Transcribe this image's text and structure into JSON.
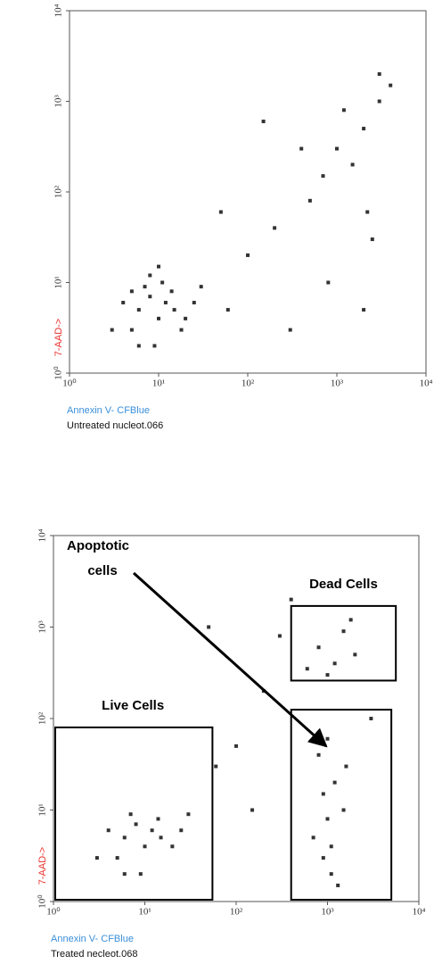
{
  "chart_data": [
    {
      "type": "scatter",
      "log": true,
      "color": "#000000",
      "x_label": "Annexin V- CFBlue",
      "y_label": "7-AAD->",
      "caption": "Untreated nucleot.066",
      "xlim": [
        1,
        10000
      ],
      "ylim": [
        1,
        10000
      ],
      "xticks": [
        {
          "value": 1,
          "label": "10⁰"
        },
        {
          "value": 10,
          "label": "10¹"
        },
        {
          "value": 100,
          "label": "10²"
        },
        {
          "value": 1000,
          "label": "10³"
        },
        {
          "value": 10000,
          "label": "10⁴"
        }
      ],
      "yticks": [
        {
          "value": 1,
          "label": "10⁰"
        },
        {
          "value": 10,
          "label": "10¹"
        },
        {
          "value": 100,
          "label": "10²"
        },
        {
          "value": 1000,
          "label": "10³"
        },
        {
          "value": 10000,
          "label": "10⁴"
        }
      ],
      "x": [
        6,
        8,
        10,
        12,
        5,
        7,
        9,
        15,
        4,
        11,
        20,
        3,
        8,
        14,
        25,
        6,
        10,
        18,
        30,
        5,
        60,
        100,
        200,
        500,
        1000,
        2000,
        3000,
        1500,
        2500,
        800,
        400,
        3000,
        1200,
        2000,
        50,
        4000,
        700,
        2200,
        300,
        150
      ],
      "values": [
        5,
        7,
        4,
        6,
        3,
        9,
        2,
        5,
        6,
        10,
        4,
        3,
        12,
        8,
        6,
        2,
        15,
        3,
        9,
        8,
        5,
        20,
        40,
        80,
        300,
        500,
        1000,
        200,
        30,
        10,
        300,
        2000,
        800,
        5,
        60,
        1500,
        150,
        60,
        3,
        600
      ]
    },
    {
      "type": "scatter",
      "log": true,
      "color": "#000000",
      "x_label": "Annexin V- CFBlue",
      "y_label": "7-AAD->",
      "caption": "Treated necleot.068",
      "xlim": [
        1,
        10000
      ],
      "ylim": [
        1,
        10000
      ],
      "xticks": [
        {
          "value": 1,
          "label": "10⁰"
        },
        {
          "value": 10,
          "label": "10¹"
        },
        {
          "value": 100,
          "label": "10²"
        },
        {
          "value": 1000,
          "label": "10³"
        },
        {
          "value": 10000,
          "label": "10⁴"
        }
      ],
      "yticks": [
        {
          "value": 1,
          "label": "10⁰"
        },
        {
          "value": 10,
          "label": "10¹"
        },
        {
          "value": 100,
          "label": "10²"
        },
        {
          "value": 1000,
          "label": "10³"
        },
        {
          "value": 10000,
          "label": "10⁴"
        }
      ],
      "x": [
        6,
        8,
        10,
        12,
        5,
        7,
        9,
        15,
        4,
        20,
        3,
        14,
        25,
        30,
        6,
        900,
        1000,
        1200,
        800,
        1100,
        1500,
        700,
        1000,
        1300,
        1600,
        900,
        1100,
        1200,
        800,
        1500,
        2000,
        600,
        1800,
        1000,
        100,
        200,
        300,
        50,
        3000,
        150,
        400,
        60
      ],
      "values": [
        5,
        7,
        4,
        6,
        3,
        9,
        2,
        5,
        6,
        4,
        3,
        8,
        6,
        9,
        2,
        3,
        8,
        20,
        40,
        2,
        10,
        5,
        60,
        1.5,
        30,
        15,
        4,
        400,
        600,
        900,
        500,
        350,
        1200,
        300,
        50,
        200,
        800,
        1000,
        100,
        10,
        2000,
        30
      ],
      "gates": [
        {
          "label": "Live Cells",
          "xlim": [
            1,
            55
          ],
          "ylim": [
            1,
            80
          ]
        },
        {
          "label": "Dead Cells",
          "xlim": [
            400,
            5600
          ],
          "ylim": [
            260,
            1700
          ]
        },
        {
          "xlim": [
            400,
            5000
          ],
          "ylim": [
            1,
            125
          ]
        }
      ],
      "annotation": [
        "Apoptotic",
        "cells"
      ]
    }
  ]
}
